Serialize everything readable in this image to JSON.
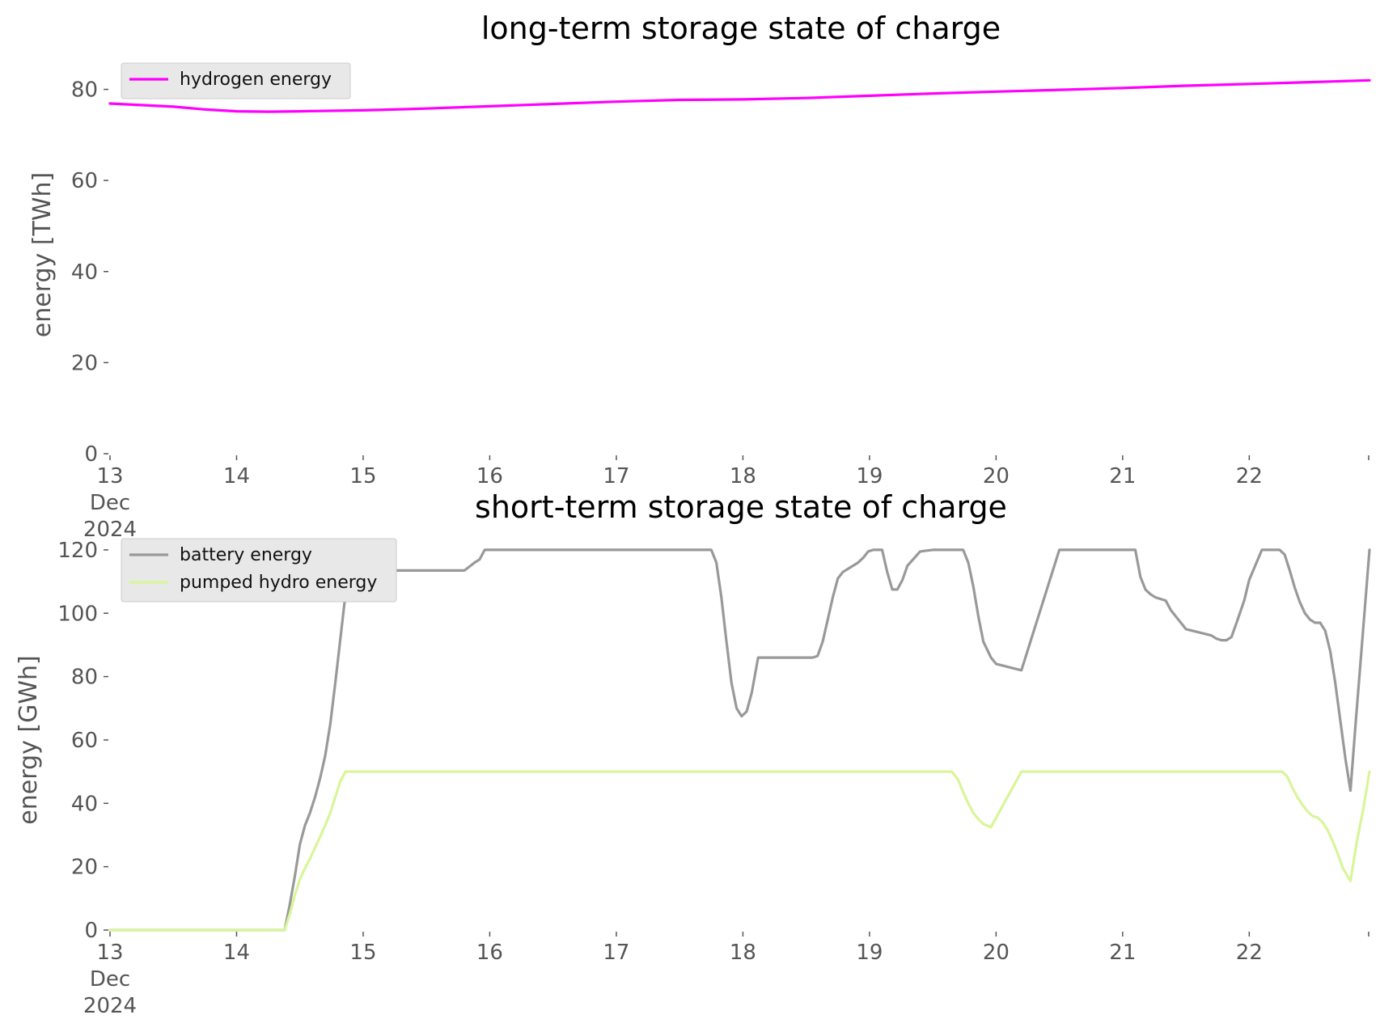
{
  "chart_data": [
    {
      "type": "line",
      "title": "long-term storage state of charge",
      "xlabel": "",
      "ylabel": "energy [TWh]",
      "x_ticks": [
        {
          "day": 0,
          "lines": [
            "13",
            "Dec",
            "2024"
          ]
        },
        {
          "day": 1,
          "lines": [
            "14"
          ]
        },
        {
          "day": 2,
          "lines": [
            "15"
          ]
        },
        {
          "day": 3,
          "lines": [
            "16"
          ]
        },
        {
          "day": 4,
          "lines": [
            "17"
          ]
        },
        {
          "day": 5,
          "lines": [
            "18"
          ]
        },
        {
          "day": 6,
          "lines": [
            "19"
          ]
        },
        {
          "day": 7,
          "lines": [
            "20"
          ]
        },
        {
          "day": 8,
          "lines": [
            "21"
          ]
        },
        {
          "day": 9,
          "lines": [
            "22"
          ]
        }
      ],
      "xlim": [
        0,
        9.95
      ],
      "ylim": [
        0,
        84
      ],
      "yticks": [
        0,
        20,
        40,
        60,
        80
      ],
      "grid": false,
      "legend_position": "top-left",
      "series": [
        {
          "name": "hydrogen energy",
          "color": "#ff00ff",
          "x": [
            0,
            0.5,
            0.75,
            1.0,
            1.25,
            1.5,
            2.0,
            2.5,
            3.0,
            3.5,
            4.0,
            4.5,
            5.0,
            5.5,
            6.0,
            6.5,
            7.0,
            7.5,
            8.0,
            8.5,
            9.0,
            9.5,
            9.95
          ],
          "y": [
            76.9,
            76.2,
            75.6,
            75.2,
            75.1,
            75.2,
            75.4,
            75.8,
            76.3,
            76.8,
            77.3,
            77.7,
            77.8,
            78.1,
            78.6,
            79.1,
            79.5,
            79.9,
            80.3,
            80.8,
            81.2,
            81.6,
            82.0
          ]
        }
      ]
    },
    {
      "type": "line",
      "title": "short-term storage state of charge",
      "xlabel": "",
      "ylabel": "energy [GWh]",
      "x_ticks": [
        {
          "day": 0,
          "lines": [
            "13",
            "Dec",
            "2024"
          ]
        },
        {
          "day": 1,
          "lines": [
            "14"
          ]
        },
        {
          "day": 2,
          "lines": [
            "15"
          ]
        },
        {
          "day": 3,
          "lines": [
            "16"
          ]
        },
        {
          "day": 4,
          "lines": [
            "17"
          ]
        },
        {
          "day": 5,
          "lines": [
            "18"
          ]
        },
        {
          "day": 6,
          "lines": [
            "19"
          ]
        },
        {
          "day": 7,
          "lines": [
            "20"
          ]
        },
        {
          "day": 8,
          "lines": [
            "21"
          ]
        },
        {
          "day": 9,
          "lines": [
            "22"
          ]
        }
      ],
      "xlim": [
        0,
        9.95
      ],
      "ylim": [
        0,
        121
      ],
      "yticks": [
        0,
        20,
        40,
        60,
        80,
        100,
        120
      ],
      "grid": false,
      "legend_position": "top-left",
      "series": [
        {
          "name": "battery energy",
          "color": "#999999",
          "x": [
            0,
            1.38,
            1.42,
            1.46,
            1.5,
            1.54,
            1.58,
            1.62,
            1.66,
            1.7,
            1.74,
            1.78,
            1.82,
            1.86,
            1.9,
            1.94,
            1.96,
            2.0,
            2.04,
            2.1,
            2.2,
            2.4,
            2.6,
            2.8,
            2.88,
            2.92,
            2.96,
            3.6,
            4.0,
            4.5,
            4.75,
            4.79,
            4.83,
            4.87,
            4.91,
            4.95,
            4.99,
            5.03,
            5.07,
            5.12,
            5.16,
            5.2,
            5.3,
            5.4,
            5.5,
            5.55,
            5.59,
            5.63,
            5.67,
            5.71,
            5.75,
            5.79,
            5.83,
            5.87,
            5.91,
            5.95,
            5.99,
            6.03,
            6.07,
            6.1,
            6.14,
            6.18,
            6.22,
            6.26,
            6.3,
            6.4,
            6.5,
            6.58,
            6.62,
            6.66,
            6.7,
            6.74,
            6.78,
            6.82,
            6.86,
            6.9,
            6.96,
            7.0,
            7.2,
            7.5,
            7.8,
            7.98,
            8.02,
            8.06,
            8.1,
            8.14,
            8.18,
            8.22,
            8.26,
            8.3,
            8.34,
            8.38,
            8.5,
            8.6,
            8.7,
            8.74,
            8.78,
            8.82,
            8.86,
            8.9,
            8.96,
            9.0,
            9.1,
            9.2,
            9.24,
            9.28,
            9.32,
            9.36,
            9.4,
            9.44,
            9.48,
            9.52,
            9.56,
            9.6,
            9.64,
            9.68,
            9.72,
            9.76,
            9.8,
            9.84,
            9.9,
            9.95
          ],
          "y": [
            0,
            0,
            8,
            17,
            27,
            33,
            37,
            42,
            48,
            55,
            65,
            78,
            92,
            106,
            120,
            117,
            116,
            115.5,
            115,
            114.5,
            113.5,
            113.5,
            113.5,
            113.5,
            116,
            117,
            120,
            120,
            120,
            120,
            120,
            116,
            105,
            91,
            78,
            70,
            67.5,
            69,
            75,
            86,
            86,
            86,
            86,
            86,
            86,
            86,
            86.5,
            91,
            98,
            105,
            111,
            113,
            114,
            115,
            116,
            117.5,
            119.5,
            120,
            120,
            120,
            113,
            107.5,
            107.5,
            110.5,
            115,
            119.5,
            120,
            120,
            120,
            120,
            120,
            120,
            116,
            108.5,
            99,
            91,
            86,
            84,
            82,
            120,
            120,
            120,
            120,
            120,
            120,
            111.5,
            107.5,
            106,
            105,
            104.5,
            104,
            101,
            95,
            94,
            93,
            92,
            91.5,
            91.5,
            92.5,
            97,
            104,
            110.5,
            120,
            120,
            120,
            118.5,
            113.5,
            108,
            103.5,
            100,
            98,
            97,
            97,
            94.5,
            88,
            78,
            66,
            54,
            44,
            65,
            95,
            120
          ]
        },
        {
          "name": "pumped hydro energy",
          "color": "#d9f59a",
          "x": [
            0,
            1.38,
            1.42,
            1.46,
            1.5,
            1.54,
            1.58,
            1.62,
            1.66,
            1.7,
            1.74,
            1.78,
            1.82,
            1.86,
            1.9,
            1.94,
            1.96,
            2.5,
            4.0,
            6.0,
            6.5,
            6.6,
            6.65,
            6.7,
            6.74,
            6.78,
            6.82,
            6.86,
            6.9,
            6.96,
            7.2,
            8.0,
            9.0,
            9.22,
            9.26,
            9.3,
            9.34,
            9.38,
            9.42,
            9.46,
            9.5,
            9.54,
            9.58,
            9.62,
            9.66,
            9.7,
            9.74,
            9.8,
            9.85,
            9.9,
            9.95
          ],
          "y": [
            0,
            0,
            5,
            11,
            16,
            19.5,
            22.5,
            26,
            29.5,
            33,
            37,
            42,
            47,
            50,
            50,
            50,
            50,
            50,
            50,
            50,
            50,
            50,
            50,
            47.5,
            43.5,
            40,
            37,
            35,
            33.5,
            32.5,
            50,
            50,
            50,
            50,
            50,
            48.5,
            45,
            42,
            39.5,
            37.5,
            36,
            35.5,
            34,
            31.5,
            28,
            24,
            19.5,
            15.5,
            28,
            38,
            50
          ]
        }
      ]
    }
  ]
}
